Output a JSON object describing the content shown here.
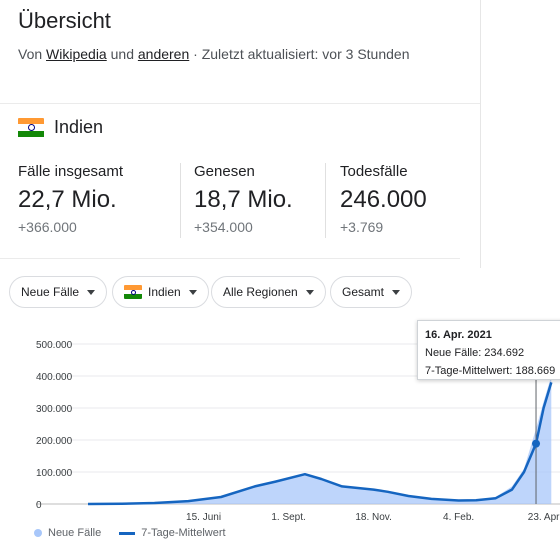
{
  "header": {
    "title": "Übersicht",
    "source_prefix": "Von",
    "source_link1": "Wikipedia",
    "source_mid": "und",
    "source_link2": "anderen",
    "source_suffix": "· Zuletzt aktualisiert: vor 3 Stunden"
  },
  "country": {
    "name": "Indien",
    "flag_icon": "india-flag-icon"
  },
  "stats": [
    {
      "label": "Fälle insgesamt",
      "value": "22,7 Mio.",
      "delta": "+366.000"
    },
    {
      "label": "Genesen",
      "value": "18,7 Mio.",
      "delta": "+354.000"
    },
    {
      "label": "Todesfälle",
      "value": "246.000",
      "delta": "+3.769"
    }
  ],
  "filters": {
    "metric": "Neue Fälle",
    "country": "Indien",
    "region": "Alle Regionen",
    "period": "Gesamt"
  },
  "tooltip": {
    "date": "16. Apr. 2021",
    "new_cases": "Neue Fälle: 234.692",
    "avg": "7-Tage-Mittelwert: 188.669"
  },
  "colors": {
    "line": "#1565c0",
    "area": "#a8c7fa"
  },
  "chart_data": {
    "type": "area",
    "x_ticks": [
      "15. Juni",
      "1. Sept.",
      "18. Nov.",
      "4. Feb.",
      "23. Apr"
    ],
    "y_ticks": [
      "500.000",
      "400.000",
      "300.000",
      "200.000",
      "100.000",
      "0"
    ],
    "ylim": [
      0,
      500000
    ],
    "legend": [
      "Neue Fälle",
      "7-Tage-Mittelwert"
    ],
    "legend_position": "bottom-left",
    "x": [
      "2020-03-01",
      "2020-04-01",
      "2020-05-01",
      "2020-06-01",
      "2020-07-01",
      "2020-08-01",
      "2020-08-20",
      "2020-09-16",
      "2020-10-01",
      "2020-10-20",
      "2020-11-18",
      "2020-12-01",
      "2020-12-20",
      "2021-01-10",
      "2021-02-04",
      "2021-02-20",
      "2021-03-10",
      "2021-03-25",
      "2021-04-05",
      "2021-04-16",
      "2021-04-23",
      "2021-04-30"
    ],
    "series": [
      {
        "name": "7-Tage-Mittelwert",
        "values": [
          0,
          1000,
          3000,
          9000,
          22000,
          55000,
          70000,
          93000,
          78000,
          55000,
          45000,
          38000,
          25000,
          16000,
          11000,
          12000,
          18000,
          45000,
          100000,
          188669,
          300000,
          380000
        ]
      },
      {
        "name": "Neue Fälle",
        "values": [
          0,
          1200,
          3500,
          10000,
          24000,
          58000,
          72000,
          97000,
          75000,
          52000,
          46000,
          36000,
          23000,
          15000,
          11500,
          13000,
          22000,
          55000,
          110000,
          234692,
          320000,
          400000
        ]
      }
    ]
  }
}
